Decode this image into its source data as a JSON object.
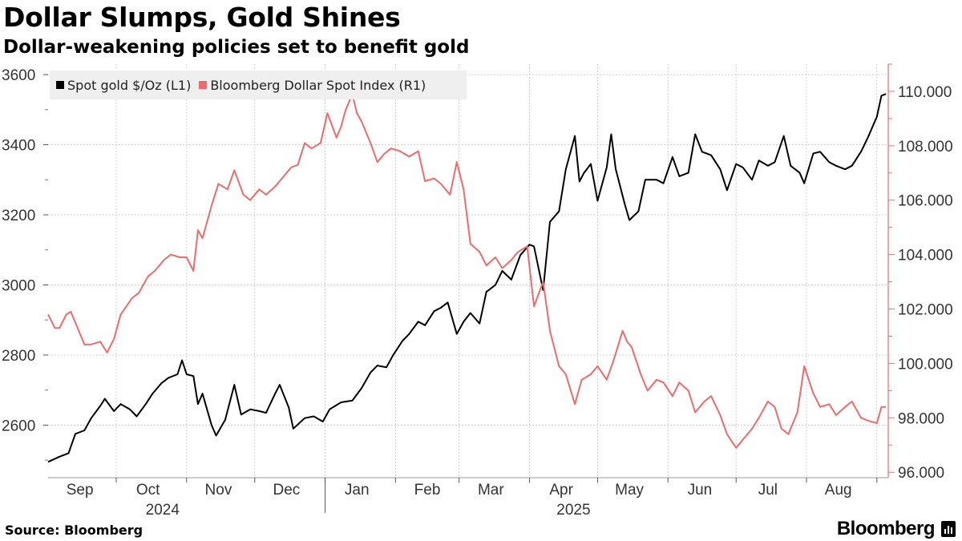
{
  "header": {
    "title": "Dollar Slumps, Gold Shines",
    "subtitle": "Dollar-weakening policies set to benefit gold"
  },
  "footer": {
    "source": "Source: Bloomberg",
    "brand": "Bloomberg"
  },
  "colors": {
    "gold": "#000000",
    "dollar": "#ee6b6b",
    "right_axis": "#ee6b6b",
    "grid": "#d0d0d0"
  },
  "chart_data": {
    "type": "line",
    "title": "Dollar Slumps, Gold Shines",
    "subtitle": "Dollar-weakening policies set to benefit gold",
    "legend_position": "top-left",
    "grid": true,
    "x_ticks": [
      {
        "label": "Sep",
        "date": "2024-09-15"
      },
      {
        "label": "Oct",
        "date": "2024-10-15"
      },
      {
        "label": "Nov",
        "date": "2024-11-15"
      },
      {
        "label": "Dec",
        "date": "2024-12-15"
      },
      {
        "label": "Jan",
        "date": "2025-01-15"
      },
      {
        "label": "Feb",
        "date": "2025-02-15"
      },
      {
        "label": "Mar",
        "date": "2025-03-15"
      },
      {
        "label": "Apr",
        "date": "2025-04-15"
      },
      {
        "label": "May",
        "date": "2025-05-15"
      },
      {
        "label": "Jun",
        "date": "2025-06-15"
      },
      {
        "label": "Jul",
        "date": "2025-07-15"
      },
      {
        "label": "Aug",
        "date": "2025-08-15"
      }
    ],
    "year_labels": [
      {
        "label": "2024",
        "date": "2024-11-01"
      },
      {
        "label": "2025",
        "date": "2025-05-01"
      }
    ],
    "x_range": [
      "2024-09-01",
      "2025-09-06"
    ],
    "y_left": {
      "range": [
        2450,
        3630
      ],
      "ticks": [
        2600,
        2800,
        3000,
        3200,
        3400,
        3600
      ]
    },
    "y_right": {
      "range": [
        95.8,
        111.0
      ],
      "ticks": [
        "96.000",
        "98.000",
        "100.000",
        "102.000",
        "104.000",
        "106.000",
        "108.000",
        "110.000"
      ]
    },
    "series": [
      {
        "name": "Spot gold $/Oz (L1)",
        "axis": "left",
        "color": "#000000",
        "points": [
          [
            "2024-09-01",
            2495
          ],
          [
            "2024-09-06",
            2510
          ],
          [
            "2024-09-10",
            2520
          ],
          [
            "2024-09-13",
            2575
          ],
          [
            "2024-09-17",
            2585
          ],
          [
            "2024-09-20",
            2620
          ],
          [
            "2024-09-24",
            2655
          ],
          [
            "2024-09-26",
            2675
          ],
          [
            "2024-09-30",
            2640
          ],
          [
            "2024-10-03",
            2660
          ],
          [
            "2024-10-07",
            2645
          ],
          [
            "2024-10-10",
            2625
          ],
          [
            "2024-10-14",
            2660
          ],
          [
            "2024-10-17",
            2690
          ],
          [
            "2024-10-21",
            2720
          ],
          [
            "2024-10-24",
            2735
          ],
          [
            "2024-10-28",
            2745
          ],
          [
            "2024-10-30",
            2785
          ],
          [
            "2024-11-01",
            2745
          ],
          [
            "2024-11-04",
            2740
          ],
          [
            "2024-11-06",
            2660
          ],
          [
            "2024-11-08",
            2690
          ],
          [
            "2024-11-12",
            2600
          ],
          [
            "2024-11-14",
            2570
          ],
          [
            "2024-11-18",
            2615
          ],
          [
            "2024-11-22",
            2715
          ],
          [
            "2024-11-25",
            2630
          ],
          [
            "2024-11-29",
            2645
          ],
          [
            "2024-12-03",
            2640
          ],
          [
            "2024-12-06",
            2635
          ],
          [
            "2024-12-10",
            2690
          ],
          [
            "2024-12-12",
            2715
          ],
          [
            "2024-12-16",
            2650
          ],
          [
            "2024-12-18",
            2590
          ],
          [
            "2024-12-23",
            2620
          ],
          [
            "2024-12-27",
            2625
          ],
          [
            "2024-12-31",
            2610
          ],
          [
            "2025-01-03",
            2645
          ],
          [
            "2025-01-08",
            2665
          ],
          [
            "2025-01-13",
            2670
          ],
          [
            "2025-01-17",
            2705
          ],
          [
            "2025-01-21",
            2750
          ],
          [
            "2025-01-24",
            2770
          ],
          [
            "2025-01-28",
            2765
          ],
          [
            "2025-01-31",
            2800
          ],
          [
            "2025-02-04",
            2840
          ],
          [
            "2025-02-07",
            2860
          ],
          [
            "2025-02-11",
            2895
          ],
          [
            "2025-02-14",
            2885
          ],
          [
            "2025-02-18",
            2925
          ],
          [
            "2025-02-21",
            2935
          ],
          [
            "2025-02-24",
            2950
          ],
          [
            "2025-02-28",
            2860
          ],
          [
            "2025-03-03",
            2895
          ],
          [
            "2025-03-06",
            2920
          ],
          [
            "2025-03-10",
            2890
          ],
          [
            "2025-03-13",
            2980
          ],
          [
            "2025-03-17",
            3000
          ],
          [
            "2025-03-20",
            3040
          ],
          [
            "2025-03-24",
            3015
          ],
          [
            "2025-03-28",
            3085
          ],
          [
            "2025-04-01",
            3115
          ],
          [
            "2025-04-03",
            3110
          ],
          [
            "2025-04-07",
            2985
          ],
          [
            "2025-04-10",
            3180
          ],
          [
            "2025-04-14",
            3210
          ],
          [
            "2025-04-17",
            3330
          ],
          [
            "2025-04-21",
            3425
          ],
          [
            "2025-04-23",
            3295
          ],
          [
            "2025-04-25",
            3320
          ],
          [
            "2025-04-28",
            3345
          ],
          [
            "2025-05-01",
            3240
          ],
          [
            "2025-05-05",
            3335
          ],
          [
            "2025-05-07",
            3430
          ],
          [
            "2025-05-09",
            3330
          ],
          [
            "2025-05-13",
            3230
          ],
          [
            "2025-05-15",
            3185
          ],
          [
            "2025-05-19",
            3210
          ],
          [
            "2025-05-22",
            3300
          ],
          [
            "2025-05-27",
            3300
          ],
          [
            "2025-05-30",
            3290
          ],
          [
            "2025-06-03",
            3365
          ],
          [
            "2025-06-06",
            3310
          ],
          [
            "2025-06-10",
            3320
          ],
          [
            "2025-06-13",
            3430
          ],
          [
            "2025-06-16",
            3380
          ],
          [
            "2025-06-20",
            3370
          ],
          [
            "2025-06-24",
            3330
          ],
          [
            "2025-06-27",
            3270
          ],
          [
            "2025-07-01",
            3345
          ],
          [
            "2025-07-04",
            3335
          ],
          [
            "2025-07-08",
            3300
          ],
          [
            "2025-07-11",
            3355
          ],
          [
            "2025-07-15",
            3340
          ],
          [
            "2025-07-18",
            3350
          ],
          [
            "2025-07-22",
            3425
          ],
          [
            "2025-07-25",
            3340
          ],
          [
            "2025-07-29",
            3320
          ],
          [
            "2025-07-31",
            3290
          ],
          [
            "2025-08-04",
            3375
          ],
          [
            "2025-08-07",
            3380
          ],
          [
            "2025-08-11",
            3350
          ],
          [
            "2025-08-14",
            3340
          ],
          [
            "2025-08-18",
            3330
          ],
          [
            "2025-08-21",
            3340
          ],
          [
            "2025-08-25",
            3380
          ],
          [
            "2025-08-28",
            3420
          ],
          [
            "2025-09-01",
            3480
          ],
          [
            "2025-09-03",
            3540
          ],
          [
            "2025-09-05",
            3545
          ]
        ]
      },
      {
        "name": "Bloomberg Dollar Spot Index (R1)",
        "axis": "right",
        "color": "#ee6b6b",
        "points": [
          [
            "2024-09-01",
            101.8
          ],
          [
            "2024-09-04",
            101.3
          ],
          [
            "2024-09-06",
            101.3
          ],
          [
            "2024-09-09",
            101.8
          ],
          [
            "2024-09-11",
            101.9
          ],
          [
            "2024-09-13",
            101.5
          ],
          [
            "2024-09-17",
            100.7
          ],
          [
            "2024-09-20",
            100.7
          ],
          [
            "2024-09-24",
            100.8
          ],
          [
            "2024-09-27",
            100.4
          ],
          [
            "2024-09-30",
            100.9
          ],
          [
            "2024-10-03",
            101.8
          ],
          [
            "2024-10-08",
            102.4
          ],
          [
            "2024-10-11",
            102.6
          ],
          [
            "2024-10-15",
            103.2
          ],
          [
            "2024-10-18",
            103.4
          ],
          [
            "2024-10-22",
            103.8
          ],
          [
            "2024-10-25",
            104.0
          ],
          [
            "2024-10-29",
            103.9
          ],
          [
            "2024-11-01",
            103.9
          ],
          [
            "2024-11-04",
            103.4
          ],
          [
            "2024-11-06",
            104.9
          ],
          [
            "2024-11-08",
            104.6
          ],
          [
            "2024-11-12",
            105.8
          ],
          [
            "2024-11-15",
            106.6
          ],
          [
            "2024-11-19",
            106.4
          ],
          [
            "2024-11-22",
            107.1
          ],
          [
            "2024-11-26",
            106.2
          ],
          [
            "2024-11-29",
            106.0
          ],
          [
            "2024-12-03",
            106.4
          ],
          [
            "2024-12-06",
            106.2
          ],
          [
            "2024-12-10",
            106.5
          ],
          [
            "2024-12-13",
            106.8
          ],
          [
            "2024-12-17",
            107.2
          ],
          [
            "2024-12-20",
            107.3
          ],
          [
            "2024-12-23",
            108.1
          ],
          [
            "2024-12-26",
            107.9
          ],
          [
            "2024-12-30",
            108.1
          ],
          [
            "2025-01-02",
            109.2
          ],
          [
            "2025-01-06",
            108.3
          ],
          [
            "2025-01-08",
            108.7
          ],
          [
            "2025-01-10",
            109.3
          ],
          [
            "2025-01-13",
            109.9
          ],
          [
            "2025-01-15",
            109.2
          ],
          [
            "2025-01-17",
            108.9
          ],
          [
            "2025-01-21",
            108.1
          ],
          [
            "2025-01-24",
            107.4
          ],
          [
            "2025-01-27",
            107.7
          ],
          [
            "2025-01-30",
            107.9
          ],
          [
            "2025-02-03",
            107.8
          ],
          [
            "2025-02-07",
            107.6
          ],
          [
            "2025-02-11",
            107.8
          ],
          [
            "2025-02-14",
            106.7
          ],
          [
            "2025-02-18",
            106.8
          ],
          [
            "2025-02-21",
            106.6
          ],
          [
            "2025-02-25",
            106.2
          ],
          [
            "2025-02-28",
            107.4
          ],
          [
            "2025-03-03",
            106.4
          ],
          [
            "2025-03-06",
            104.4
          ],
          [
            "2025-03-10",
            104.1
          ],
          [
            "2025-03-13",
            103.6
          ],
          [
            "2025-03-17",
            103.9
          ],
          [
            "2025-03-20",
            103.5
          ],
          [
            "2025-03-24",
            103.8
          ],
          [
            "2025-03-27",
            104.1
          ],
          [
            "2025-03-31",
            104.3
          ],
          [
            "2025-04-03",
            102.1
          ],
          [
            "2025-04-07",
            103.0
          ],
          [
            "2025-04-10",
            101.2
          ],
          [
            "2025-04-14",
            99.9
          ],
          [
            "2025-04-17",
            99.6
          ],
          [
            "2025-04-21",
            98.5
          ],
          [
            "2025-04-24",
            99.4
          ],
          [
            "2025-04-28",
            99.6
          ],
          [
            "2025-05-01",
            99.9
          ],
          [
            "2025-05-05",
            99.4
          ],
          [
            "2025-05-08",
            100.1
          ],
          [
            "2025-05-12",
            101.2
          ],
          [
            "2025-05-14",
            100.8
          ],
          [
            "2025-05-16",
            100.6
          ],
          [
            "2025-05-20",
            99.6
          ],
          [
            "2025-05-23",
            99.0
          ],
          [
            "2025-05-27",
            99.4
          ],
          [
            "2025-05-30",
            99.3
          ],
          [
            "2025-06-03",
            98.8
          ],
          [
            "2025-06-06",
            99.3
          ],
          [
            "2025-06-10",
            99.0
          ],
          [
            "2025-06-13",
            98.2
          ],
          [
            "2025-06-17",
            98.6
          ],
          [
            "2025-06-20",
            98.8
          ],
          [
            "2025-06-24",
            98.1
          ],
          [
            "2025-06-27",
            97.4
          ],
          [
            "2025-07-01",
            96.9
          ],
          [
            "2025-07-04",
            97.2
          ],
          [
            "2025-07-08",
            97.6
          ],
          [
            "2025-07-11",
            98.0
          ],
          [
            "2025-07-15",
            98.6
          ],
          [
            "2025-07-18",
            98.4
          ],
          [
            "2025-07-21",
            97.6
          ],
          [
            "2025-07-24",
            97.4
          ],
          [
            "2025-07-28",
            98.2
          ],
          [
            "2025-07-31",
            99.9
          ],
          [
            "2025-08-04",
            98.9
          ],
          [
            "2025-08-07",
            98.4
          ],
          [
            "2025-08-11",
            98.5
          ],
          [
            "2025-08-14",
            98.1
          ],
          [
            "2025-08-18",
            98.4
          ],
          [
            "2025-08-21",
            98.6
          ],
          [
            "2025-08-25",
            98.0
          ],
          [
            "2025-08-28",
            97.9
          ],
          [
            "2025-09-01",
            97.8
          ],
          [
            "2025-09-03",
            98.4
          ],
          [
            "2025-09-05",
            98.4
          ]
        ]
      }
    ]
  }
}
